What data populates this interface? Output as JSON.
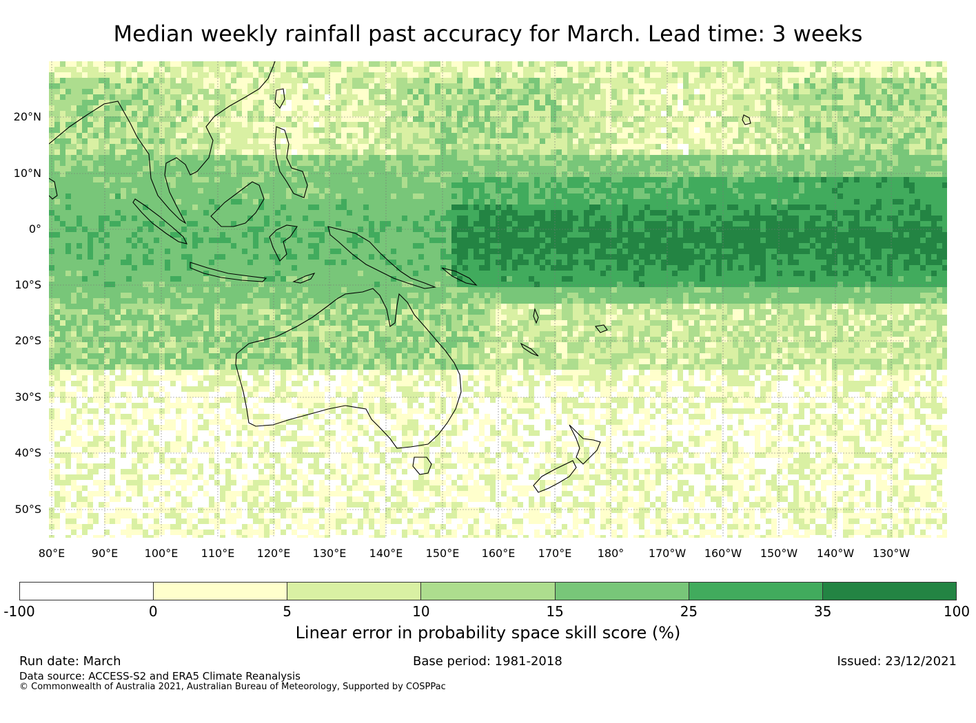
{
  "title": "Median weekly rainfall past accuracy for March. Lead time: 3 weeks",
  "map": {
    "lat_labels": [
      "20°N",
      "10°N",
      "0°",
      "10°S",
      "20°S",
      "30°S",
      "40°S",
      "50°S"
    ],
    "lon_labels": [
      "80°E",
      "90°E",
      "100°E",
      "110°E",
      "120°E",
      "130°E",
      "140°E",
      "150°E",
      "160°E",
      "170°E",
      "180°",
      "170°W",
      "160°W",
      "150°W",
      "140°W",
      "130°W"
    ]
  },
  "colorbar": {
    "label": "Linear error in probability space skill score (%)",
    "ticks": [
      "-100",
      "0",
      "5",
      "10",
      "15",
      "25",
      "35",
      "100"
    ],
    "colors": [
      "#ffffff",
      "#ffffcc",
      "#d9f0a3",
      "#addd8e",
      "#78c679",
      "#41ab5d",
      "#238443"
    ]
  },
  "footer": {
    "run_date": "Run date: March",
    "base_period": "Base period: 1981-2018",
    "issued": "Issued: 23/12/2021",
    "data_source": "Data source: ACCESS-S2 and ERA5 Climate Reanalysis",
    "copyright": "© Commonwealth of Australia 2021, Australian Bureau of Meteorology, Supported by COSPPac"
  }
}
